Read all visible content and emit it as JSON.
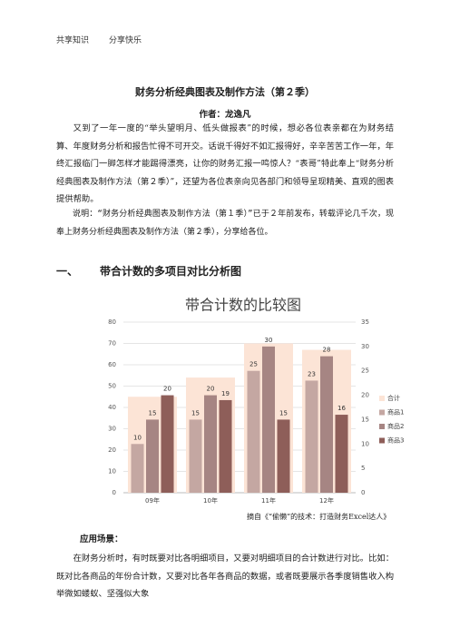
{
  "header": [
    "共享知识",
    "分享快乐"
  ],
  "title": "财务分析经典图表及制作方法（第２季）",
  "author": "作者：龙逸凡",
  "paragraphs": [
    "又到了一年一度的“举头望明月、低头做报表”的时候，想必各位表亲都在为财务结算、年度财务分析和报告忙得不可开交。话说千得好不如汇报得好，辛辛苦苦工作一年，年终汇报临门一脚怎样才能踢得漂亮，让你的财务汇报一鸣惊人？“表哥”特此奉上“财务分析经典图表及制作方法（第２季）”，还望为各位表亲向见各部门和领导呈现精美、直观的图表提供帮助。",
    "说明：“财务分析经典图表及制作方法（第１季）”已于２年前发布，转载评论几千次，现奉上财务分析经典图表及制作方法（第２季），分享给各位。"
  ],
  "section": {
    "number": "一、",
    "title": "带合计数的多项目对比分析图"
  },
  "chart_data": {
    "type": "bar",
    "title": "带合计数的比较图",
    "categories": [
      "09年",
      "10年",
      "11年",
      "12年"
    ],
    "series": [
      {
        "name": "合计",
        "color": "#fce4d6",
        "values": [
          45,
          54,
          70,
          67
        ]
      },
      {
        "name": "商品1",
        "color": "#c4a7a2",
        "axis": "y2",
        "values": [
          10,
          15,
          25,
          23
        ]
      },
      {
        "name": "商品2",
        "color": "#a68583",
        "axis": "y2",
        "values": [
          15,
          20,
          30,
          28
        ]
      },
      {
        "name": "商品3",
        "color": "#8e5e59",
        "axis": "y2",
        "values": [
          20,
          19,
          15,
          16
        ]
      }
    ],
    "ylim": [
      0,
      80
    ],
    "yticks": [
      0,
      10,
      20,
      30,
      40,
      50,
      60,
      70,
      80
    ],
    "y2lim": [
      0,
      35
    ],
    "y2ticks": [
      0,
      5,
      10,
      15,
      20,
      25,
      30,
      35
    ],
    "grid": true,
    "legend": "right"
  },
  "source": "摘自《“偷懒”的技术：打造财务Excel达人》",
  "usage": {
    "heading": "应用场景：",
    "text": "在财务分析时，有时既要对比各明细项目，又要对明细项目的合计数进行对比。比如：既对比各商品的年份合计数，又要对比各年各商品的数据，或者既要展示各季度销售收入构举微如蝼蚁、坚强似大象"
  }
}
